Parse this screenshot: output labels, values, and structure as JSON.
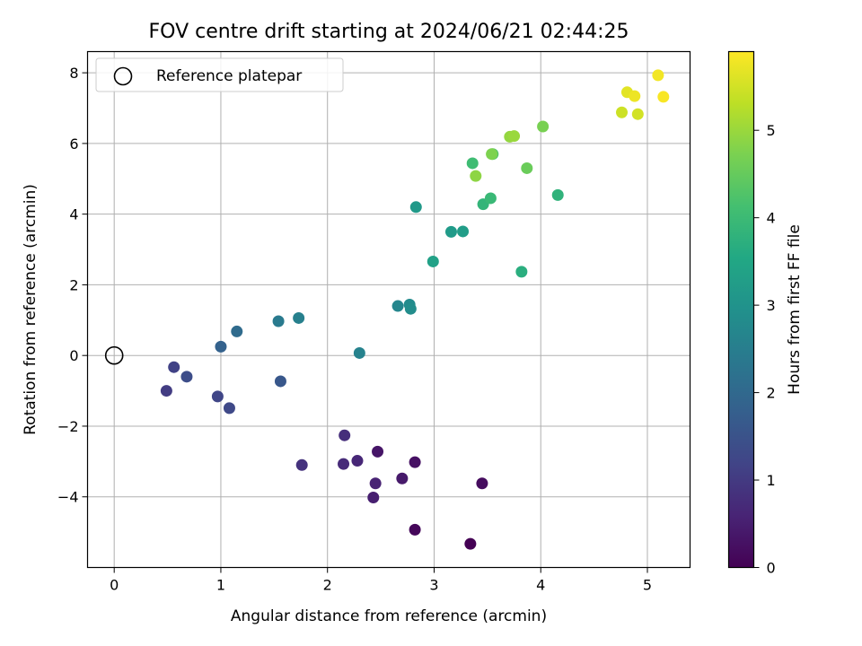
{
  "chart_data": {
    "type": "scatter",
    "title": "FOV centre drift starting at 2024/06/21 02:44:25",
    "xlabel": "Angular distance from reference (arcmin)",
    "ylabel": "Rotation from reference (arcmin)",
    "xlim": [
      -0.25,
      5.4
    ],
    "ylim": [
      -6.0,
      8.6
    ],
    "xticks": [
      "0",
      "1",
      "2",
      "3",
      "4",
      "5"
    ],
    "yticks": [
      "−4",
      "−2",
      "0",
      "2",
      "4",
      "6",
      "8"
    ],
    "grid": true,
    "legend": {
      "placement": "top-left",
      "entries": [
        "Reference platepar"
      ]
    },
    "reference_point": {
      "x": 0,
      "y": 0
    },
    "colorbar": {
      "label": "Hours from first FF file",
      "range": [
        0,
        5.9
      ],
      "ticks": [
        "0",
        "1",
        "2",
        "3",
        "4",
        "5"
      ],
      "colormap": "viridis"
    },
    "points": [
      {
        "x": 3.34,
        "y": -5.33,
        "h": 0.0
      },
      {
        "x": 2.82,
        "y": -4.93,
        "h": 0.1
      },
      {
        "x": 3.45,
        "y": -3.62,
        "h": 0.18
      },
      {
        "x": 2.82,
        "y": -3.02,
        "h": 0.26
      },
      {
        "x": 2.47,
        "y": -2.72,
        "h": 0.34
      },
      {
        "x": 2.7,
        "y": -3.48,
        "h": 0.42
      },
      {
        "x": 2.43,
        "y": -4.02,
        "h": 0.5
      },
      {
        "x": 2.45,
        "y": -3.62,
        "h": 0.57
      },
      {
        "x": 2.28,
        "y": -2.98,
        "h": 0.64
      },
      {
        "x": 2.15,
        "y": -3.07,
        "h": 0.71
      },
      {
        "x": 2.16,
        "y": -2.26,
        "h": 0.78
      },
      {
        "x": 1.76,
        "y": -3.1,
        "h": 0.84
      },
      {
        "x": 0.49,
        "y": -1.0,
        "h": 1.05
      },
      {
        "x": 0.56,
        "y": -0.33,
        "h": 1.15
      },
      {
        "x": 0.97,
        "y": -1.16,
        "h": 1.22
      },
      {
        "x": 1.08,
        "y": -1.49,
        "h": 1.3
      },
      {
        "x": 0.68,
        "y": -0.6,
        "h": 1.37
      },
      {
        "x": 1.56,
        "y": -0.73,
        "h": 1.6
      },
      {
        "x": 1.0,
        "y": 0.25,
        "h": 1.85
      },
      {
        "x": 1.15,
        "y": 0.68,
        "h": 2.05
      },
      {
        "x": 1.54,
        "y": 0.97,
        "h": 2.4
      },
      {
        "x": 1.73,
        "y": 1.06,
        "h": 2.55
      },
      {
        "x": 2.3,
        "y": 0.07,
        "h": 2.6
      },
      {
        "x": 2.66,
        "y": 1.4,
        "h": 2.7
      },
      {
        "x": 2.77,
        "y": 1.44,
        "h": 2.8
      },
      {
        "x": 2.78,
        "y": 1.32,
        "h": 2.85
      },
      {
        "x": 2.83,
        "y": 4.2,
        "h": 3.15
      },
      {
        "x": 3.16,
        "y": 3.5,
        "h": 3.2
      },
      {
        "x": 3.27,
        "y": 3.51,
        "h": 3.25
      },
      {
        "x": 2.99,
        "y": 2.66,
        "h": 3.35
      },
      {
        "x": 3.82,
        "y": 2.37,
        "h": 3.7
      },
      {
        "x": 4.16,
        "y": 4.54,
        "h": 3.8
      },
      {
        "x": 3.46,
        "y": 4.28,
        "h": 3.85
      },
      {
        "x": 3.53,
        "y": 4.45,
        "h": 3.95
      },
      {
        "x": 3.36,
        "y": 5.44,
        "h": 4.05
      },
      {
        "x": 3.55,
        "y": 5.7,
        "h": 4.25
      },
      {
        "x": 3.87,
        "y": 5.3,
        "h": 4.55
      },
      {
        "x": 4.02,
        "y": 6.48,
        "h": 4.7
      },
      {
        "x": 3.39,
        "y": 5.08,
        "h": 4.9
      },
      {
        "x": 3.71,
        "y": 6.19,
        "h": 4.95
      },
      {
        "x": 3.75,
        "y": 6.21,
        "h": 5.0
      },
      {
        "x": 3.54,
        "y": 5.7,
        "h": 4.75
      },
      {
        "x": 4.76,
        "y": 6.88,
        "h": 5.45
      },
      {
        "x": 4.91,
        "y": 6.83,
        "h": 5.5
      },
      {
        "x": 4.81,
        "y": 7.45,
        "h": 5.65
      },
      {
        "x": 4.88,
        "y": 7.34,
        "h": 5.75
      },
      {
        "x": 5.1,
        "y": 7.93,
        "h": 5.8
      },
      {
        "x": 5.15,
        "y": 7.32,
        "h": 5.85
      }
    ]
  }
}
